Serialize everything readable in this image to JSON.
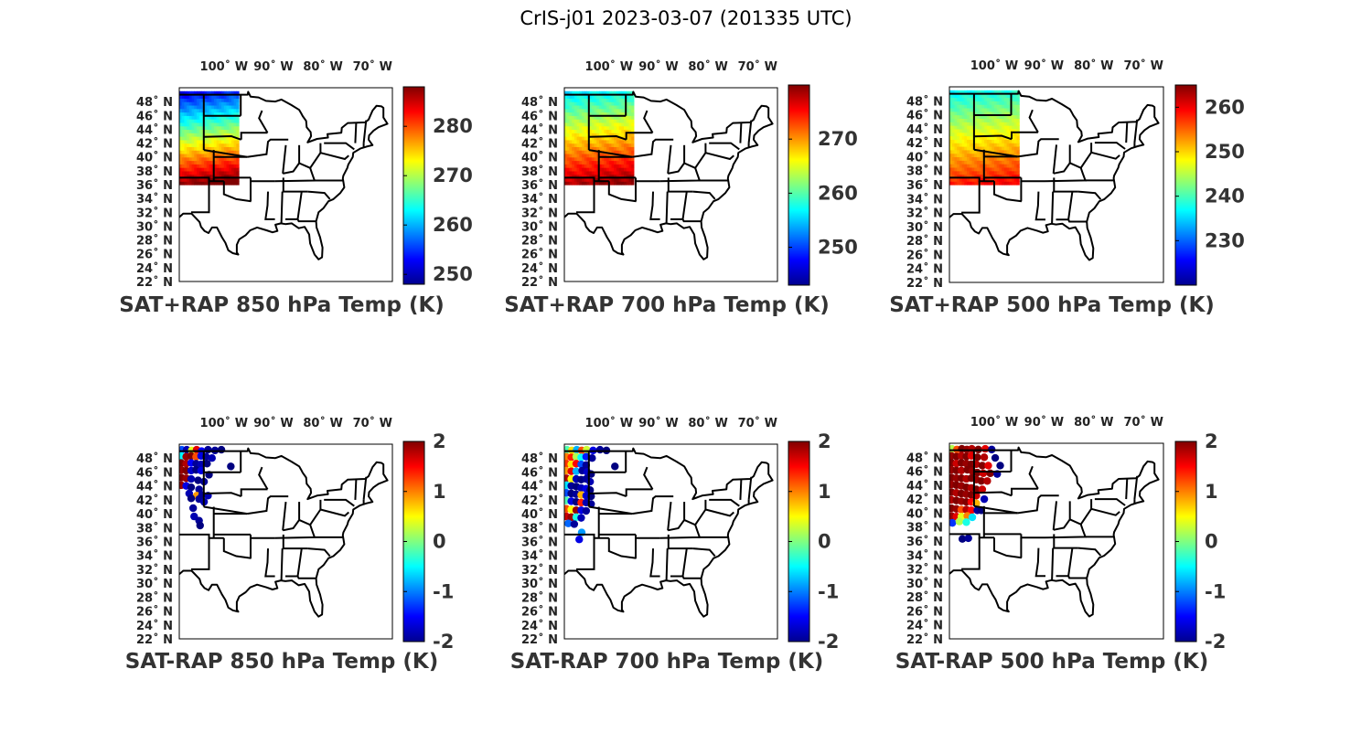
{
  "figure": {
    "title": "CrIS-j01 2023-03-07 (201335 UTC)"
  },
  "map": {
    "lon_range": [
      -109,
      -66
    ],
    "lat_range": [
      22,
      50
    ],
    "lon_ticks": [
      "100˚ W",
      "90˚ W",
      "80˚ W",
      "70˚ W"
    ],
    "lon_tick_values": [
      -100,
      -90,
      -80,
      -70
    ],
    "lat_ticks": [
      "48˚ N",
      "46˚ N",
      "44˚ N",
      "42˚ N",
      "40˚ N",
      "38˚ N",
      "36˚ N",
      "34˚ N",
      "32˚ N",
      "30˚ N",
      "28˚ N",
      "26˚ N",
      "24˚ N",
      "22˚ N"
    ],
    "lat_tick_values": [
      48,
      46,
      44,
      42,
      40,
      38,
      36,
      34,
      32,
      30,
      28,
      26,
      24,
      22
    ],
    "colormap": "jet"
  },
  "panels": [
    {
      "title": "SAT+RAP 850 hPa Temp (K)",
      "kind": "field",
      "colorbar_ticks": [
        "280",
        "270",
        "260",
        "250"
      ],
      "colorbar_tick_values": [
        280,
        270,
        260,
        250
      ],
      "clim": [
        248,
        288
      ],
      "field": {
        "lat_south": 36,
        "lat_north": 49.5,
        "lon_west": -109,
        "lon_east": -97,
        "south_value": 287,
        "north_value": 251,
        "east_gradient": 3
      }
    },
    {
      "title": "SAT+RAP 700 hPa Temp (K)",
      "kind": "field",
      "colorbar_ticks": [
        "270",
        "260",
        "250"
      ],
      "colorbar_tick_values": [
        270,
        260,
        250
      ],
      "clim": [
        243,
        280
      ],
      "field": {
        "lat_south": 36,
        "lat_north": 49.5,
        "lon_west": -109,
        "lon_east": -95,
        "south_value": 278,
        "north_value": 255,
        "east_gradient": 2
      }
    },
    {
      "title": "SAT+RAP 500 hPa Temp (K)",
      "kind": "field",
      "colorbar_ticks": [
        "260",
        "250",
        "240",
        "230"
      ],
      "colorbar_tick_values": [
        260,
        250,
        240,
        230
      ],
      "clim": [
        220,
        265
      ],
      "field": {
        "lat_south": 36,
        "lat_north": 49.5,
        "lon_west": -109,
        "lon_east": -95,
        "south_value": 258,
        "north_value": 236,
        "east_gradient": 2
      }
    },
    {
      "title": "SAT-RAP 850 hPa Temp (K)",
      "kind": "diff",
      "colorbar_ticks": [
        "2",
        "1",
        "0",
        "-1",
        "-2"
      ],
      "colorbar_tick_values": [
        2,
        1,
        0,
        -1,
        -2
      ],
      "clim": [
        -2,
        2
      ],
      "points": [
        [
          -108.5,
          49.2,
          -1.2
        ],
        [
          -107.5,
          49.2,
          -1.8
        ],
        [
          -106.5,
          49.1,
          0.4
        ],
        [
          -105.5,
          49.2,
          1.6
        ],
        [
          -104.5,
          49.0,
          -1.5
        ],
        [
          -103.2,
          49.2,
          -1.9
        ],
        [
          -101.8,
          49.1,
          -1.9
        ],
        [
          -100.5,
          49.2,
          -2.0
        ],
        [
          -108.6,
          48.3,
          -0.5
        ],
        [
          -107.6,
          48.2,
          1.9
        ],
        [
          -106.6,
          48.3,
          2.0
        ],
        [
          -105.6,
          48.2,
          1.2
        ],
        [
          -104.6,
          48.3,
          -1.6
        ],
        [
          -103.6,
          48.2,
          -1.9
        ],
        [
          -102.4,
          48.0,
          -1.8
        ],
        [
          -108.6,
          47.3,
          2.0
        ],
        [
          -107.6,
          47.2,
          1.8
        ],
        [
          -106.6,
          47.3,
          -1.5
        ],
        [
          -105.6,
          47.2,
          -1.9
        ],
        [
          -104.6,
          47.1,
          -1.8
        ],
        [
          -103.4,
          47.2,
          -2.0
        ],
        [
          -98.6,
          46.8,
          -2.0
        ],
        [
          -108.6,
          46.3,
          1.9
        ],
        [
          -107.6,
          46.2,
          2.0
        ],
        [
          -106.6,
          46.2,
          -1.7
        ],
        [
          -105.6,
          46.3,
          -2.0
        ],
        [
          -104.6,
          46.2,
          -1.6
        ],
        [
          -103.0,
          45.6,
          -2.0
        ],
        [
          -108.6,
          45.2,
          2.0
        ],
        [
          -107.6,
          45.1,
          1.9
        ],
        [
          -106.6,
          45.0,
          -1.8
        ],
        [
          -105.2,
          44.8,
          -2.0
        ],
        [
          -104.0,
          44.6,
          -1.9
        ],
        [
          -108.6,
          44.1,
          1.9
        ],
        [
          -107.6,
          44.0,
          -1.6
        ],
        [
          -106.6,
          43.8,
          -2.0
        ],
        [
          -105.0,
          43.5,
          -1.9
        ],
        [
          -107.0,
          42.9,
          -1.8
        ],
        [
          -105.5,
          42.6,
          0.9
        ],
        [
          -104.4,
          42.7,
          -1.9
        ],
        [
          -103.2,
          42.6,
          -1.8
        ],
        [
          -106.6,
          42.2,
          -2.0
        ],
        [
          -105.0,
          42.1,
          -1.9
        ],
        [
          -104.0,
          41.7,
          -1.8
        ],
        [
          -106.2,
          40.8,
          -1.9
        ],
        [
          -106.0,
          39.6,
          -1.8
        ],
        [
          -105.0,
          39.0,
          -1.9
        ],
        [
          -104.8,
          38.3,
          -2.0
        ]
      ]
    },
    {
      "title": "SAT-RAP 700 hPa Temp (K)",
      "kind": "diff",
      "colorbar_ticks": [
        "2",
        "1",
        "0",
        "-1",
        "-2"
      ],
      "colorbar_tick_values": [
        2,
        1,
        0,
        -1,
        -2
      ],
      "clim": [
        -2,
        2
      ],
      "points": [
        [
          -108.5,
          49.2,
          -0.2
        ],
        [
          -107.5,
          49.1,
          0.6
        ],
        [
          -106.5,
          49.2,
          -0.8
        ],
        [
          -105.5,
          49.1,
          1.2
        ],
        [
          -104.5,
          49.2,
          0.3
        ],
        [
          -103.2,
          49.1,
          -1.6
        ],
        [
          -101.8,
          49.2,
          -1.9
        ],
        [
          -100.5,
          49.1,
          -2.0
        ],
        [
          -108.6,
          48.2,
          1.0
        ],
        [
          -107.6,
          48.1,
          1.4
        ],
        [
          -106.6,
          48.2,
          0.2
        ],
        [
          -105.6,
          48.1,
          -0.5
        ],
        [
          -104.6,
          48.2,
          -1.4
        ],
        [
          -103.4,
          48.0,
          -1.9
        ],
        [
          -108.6,
          47.2,
          1.3
        ],
        [
          -107.6,
          47.1,
          0.6
        ],
        [
          -106.6,
          47.2,
          1.5
        ],
        [
          -105.6,
          47.1,
          -1.2
        ],
        [
          -104.6,
          47.0,
          -1.9
        ],
        [
          -98.8,
          46.8,
          -2.0
        ],
        [
          -108.6,
          46.2,
          0.9
        ],
        [
          -107.6,
          46.1,
          1.6
        ],
        [
          -106.6,
          46.1,
          -0.8
        ],
        [
          -105.4,
          46.2,
          -1.9
        ],
        [
          -104.4,
          46.0,
          -1.7
        ],
        [
          -103.6,
          45.7,
          -2.0
        ],
        [
          -108.6,
          45.1,
          1.8
        ],
        [
          -107.6,
          45.0,
          0.5
        ],
        [
          -106.6,
          45.0,
          -1.8
        ],
        [
          -105.6,
          44.9,
          -2.0
        ],
        [
          -104.6,
          45.0,
          -1.9
        ],
        [
          -103.8,
          44.6,
          -1.8
        ],
        [
          -108.6,
          44.1,
          -0.6
        ],
        [
          -107.6,
          44.0,
          -1.9
        ],
        [
          -106.6,
          43.9,
          -2.0
        ],
        [
          -105.6,
          43.7,
          -1.8
        ],
        [
          -104.6,
          43.6,
          -1.6
        ],
        [
          -103.8,
          43.4,
          -2.0
        ],
        [
          -108.6,
          43.0,
          -1.2
        ],
        [
          -107.6,
          42.9,
          -2.0
        ],
        [
          -106.6,
          42.8,
          -1.9
        ],
        [
          -105.6,
          42.7,
          0.8
        ],
        [
          -104.6,
          42.6,
          -1.7
        ],
        [
          -103.6,
          42.5,
          -2.0
        ],
        [
          -108.6,
          41.9,
          -0.2
        ],
        [
          -107.6,
          41.8,
          -1.6
        ],
        [
          -106.6,
          41.7,
          -2.0
        ],
        [
          -105.6,
          41.6,
          1.4
        ],
        [
          -104.6,
          41.6,
          -1.8
        ],
        [
          -103.6,
          41.4,
          -1.9
        ],
        [
          -108.6,
          40.7,
          1.2
        ],
        [
          -107.6,
          40.6,
          0.5
        ],
        [
          -106.6,
          40.5,
          1.9
        ],
        [
          -105.6,
          40.5,
          -1.6
        ],
        [
          -104.6,
          40.4,
          -1.9
        ],
        [
          -108.6,
          39.6,
          1.7
        ],
        [
          -107.6,
          39.5,
          1.9
        ],
        [
          -106.6,
          39.5,
          -0.4
        ],
        [
          -105.6,
          39.4,
          -1.8
        ],
        [
          -108.2,
          38.6,
          -1.1
        ],
        [
          -107.0,
          38.5,
          -1.9
        ],
        [
          -105.5,
          37.3,
          -0.9
        ],
        [
          -106.0,
          36.3,
          -1.6
        ]
      ]
    },
    {
      "title": "SAT-RAP 500 hPa Temp (K)",
      "kind": "diff",
      "colorbar_ticks": [
        "2",
        "1",
        "0",
        "-1",
        "-2"
      ],
      "colorbar_tick_values": [
        2,
        1,
        0,
        -1,
        -2
      ],
      "clim": [
        -2,
        2
      ],
      "points": [
        [
          -108.5,
          49.2,
          0.2
        ],
        [
          -107.5,
          49.1,
          1.2
        ],
        [
          -106.5,
          49.2,
          2.0
        ],
        [
          -105.5,
          49.1,
          1.9
        ],
        [
          -104.5,
          49.2,
          1.8
        ],
        [
          -103.2,
          49.1,
          2.0
        ],
        [
          -101.8,
          49.2,
          1.6
        ],
        [
          -100.5,
          49.1,
          -1.9
        ],
        [
          -108.6,
          48.2,
          1.9
        ],
        [
          -107.6,
          48.1,
          2.0
        ],
        [
          -106.6,
          48.2,
          1.8
        ],
        [
          -105.6,
          48.1,
          2.0
        ],
        [
          -104.6,
          48.2,
          1.6
        ],
        [
          -103.4,
          48.0,
          2.0
        ],
        [
          -102.0,
          48.0,
          1.8
        ],
        [
          -99.8,
          47.9,
          -2.0
        ],
        [
          -108.6,
          47.2,
          2.0
        ],
        [
          -107.6,
          47.1,
          1.7
        ],
        [
          -106.6,
          47.2,
          2.0
        ],
        [
          -105.6,
          47.1,
          1.9
        ],
        [
          -104.6,
          47.0,
          2.0
        ],
        [
          -103.6,
          47.0,
          1.8
        ],
        [
          -102.4,
          46.8,
          2.0
        ],
        [
          -101.2,
          46.8,
          1.6
        ],
        [
          -98.8,
          46.8,
          -2.0
        ],
        [
          -108.6,
          46.2,
          1.9
        ],
        [
          -107.6,
          46.1,
          2.0
        ],
        [
          -106.6,
          46.1,
          1.8
        ],
        [
          -105.4,
          46.2,
          2.0
        ],
        [
          -104.4,
          46.0,
          1.9
        ],
        [
          -103.4,
          45.8,
          2.0
        ],
        [
          -102.2,
          45.7,
          1.7
        ],
        [
          -100.8,
          45.7,
          2.0
        ],
        [
          -99.4,
          45.6,
          -1.9
        ],
        [
          -108.6,
          45.1,
          2.0
        ],
        [
          -107.6,
          45.0,
          1.9
        ],
        [
          -106.6,
          45.0,
          2.0
        ],
        [
          -105.6,
          44.9,
          1.8
        ],
        [
          -104.6,
          45.0,
          2.0
        ],
        [
          -103.6,
          44.8,
          1.9
        ],
        [
          -102.6,
          44.6,
          2.0
        ],
        [
          -101.4,
          44.6,
          1.8
        ],
        [
          -108.6,
          44.1,
          1.9
        ],
        [
          -107.6,
          44.0,
          2.0
        ],
        [
          -106.6,
          43.9,
          1.9
        ],
        [
          -105.6,
          43.7,
          2.0
        ],
        [
          -104.6,
          43.6,
          1.8
        ],
        [
          -103.6,
          43.4,
          2.0
        ],
        [
          -102.4,
          43.4,
          1.7
        ],
        [
          -108.6,
          43.0,
          2.0
        ],
        [
          -107.6,
          42.9,
          1.8
        ],
        [
          -106.6,
          42.8,
          2.0
        ],
        [
          -105.6,
          42.7,
          1.9
        ],
        [
          -104.6,
          42.6,
          2.0
        ],
        [
          -103.6,
          42.5,
          1.7
        ],
        [
          -102.0,
          42.0,
          -1.8
        ],
        [
          -108.6,
          41.9,
          1.8
        ],
        [
          -107.6,
          41.8,
          2.0
        ],
        [
          -106.6,
          41.7,
          1.9
        ],
        [
          -105.6,
          41.6,
          2.0
        ],
        [
          -104.6,
          41.6,
          1.5
        ],
        [
          -103.6,
          41.4,
          0.8
        ],
        [
          -108.6,
          40.7,
          2.0
        ],
        [
          -107.6,
          40.6,
          1.9
        ],
        [
          -106.6,
          40.5,
          1.2
        ],
        [
          -105.6,
          40.5,
          1.8
        ],
        [
          -104.6,
          40.4,
          1.5
        ],
        [
          -103.4,
          40.4,
          -1.9
        ],
        [
          -102.6,
          40.4,
          -2.0
        ],
        [
          -108.6,
          39.6,
          1.9
        ],
        [
          -107.6,
          39.5,
          1.6
        ],
        [
          -106.6,
          39.5,
          0.4
        ],
        [
          -105.4,
          39.6,
          1.0
        ],
        [
          -104.4,
          39.4,
          -0.6
        ],
        [
          -108.4,
          38.6,
          -1.3
        ],
        [
          -107.0,
          38.8,
          0.2
        ],
        [
          -105.6,
          38.7,
          -0.4
        ],
        [
          -106.4,
          36.3,
          -2.0
        ],
        [
          -105.2,
          36.4,
          -1.9
        ]
      ]
    }
  ]
}
